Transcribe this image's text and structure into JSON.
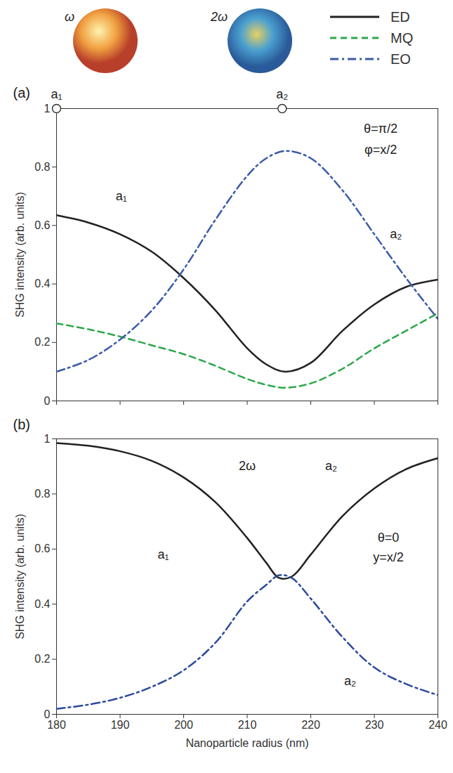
{
  "chart_data": [
    {
      "type": "line",
      "label": "(a)",
      "legend": "top",
      "tick_labels": "y",
      "x_label": "Nanoparticle radius (nm)",
      "y_label": "SHG intensity (arb. units)",
      "xlim": [
        180,
        240
      ],
      "xticks": [
        180,
        190,
        200,
        210,
        220,
        230,
        240
      ],
      "ylim": [
        0,
        1
      ],
      "yticks": [
        0,
        0.2,
        0.4,
        0.6,
        0.8,
        1
      ],
      "annotations": [
        "ω",
        "2ω",
        "θ=π/2",
        "φ=x/2",
        "a₁",
        "a₂"
      ],
      "markers": [
        {
          "label": "a₁",
          "x": 180
        },
        {
          "label": "a₂",
          "x": 215.5
        }
      ],
      "x": [
        180,
        185,
        190,
        195,
        200,
        205,
        210,
        213,
        216,
        220,
        225,
        230,
        235,
        240
      ],
      "series": [
        {
          "name": "ED",
          "color": "#222222",
          "line_style": "solid",
          "values": [
            0.635,
            0.61,
            0.57,
            0.51,
            0.42,
            0.31,
            0.18,
            0.125,
            0.1,
            0.13,
            0.24,
            0.33,
            0.39,
            0.415
          ]
        },
        {
          "name": "MQ",
          "color": "#2ca84a",
          "line_style": "dashed",
          "values": [
            0.265,
            0.245,
            0.22,
            0.19,
            0.16,
            0.12,
            0.075,
            0.055,
            0.045,
            0.06,
            0.11,
            0.18,
            0.24,
            0.3
          ]
        },
        {
          "name": "EO",
          "color": "#3b5ba8",
          "line_style": "dashdot",
          "values": [
            0.1,
            0.14,
            0.21,
            0.31,
            0.45,
            0.62,
            0.77,
            0.83,
            0.855,
            0.83,
            0.72,
            0.57,
            0.42,
            0.28
          ]
        }
      ]
    },
    {
      "type": "line",
      "label": "(b)",
      "x_label": "Nanoparticle radius (nm)",
      "y_label": "SHG intensity (arb. units)",
      "xlim": [
        180,
        240
      ],
      "xticks": [
        180,
        190,
        200,
        210,
        220,
        230,
        240
      ],
      "ylim": [
        0,
        1
      ],
      "yticks": [
        0,
        0.2,
        0.4,
        0.6,
        0.8,
        1
      ],
      "annotations": [
        "2ω",
        "a₂",
        "θ=0",
        "y=x/2",
        "a₁",
        "a₂"
      ],
      "x": [
        180,
        185,
        190,
        195,
        200,
        205,
        210,
        213,
        215,
        217,
        220,
        225,
        230,
        235,
        240
      ],
      "series": [
        {
          "name": "ED",
          "color": "#222222",
          "line_style": "solid",
          "values": [
            0.985,
            0.975,
            0.955,
            0.92,
            0.86,
            0.77,
            0.64,
            0.55,
            0.495,
            0.5,
            0.58,
            0.72,
            0.82,
            0.89,
            0.93
          ]
        },
        {
          "name": "EO",
          "color": "#2b4a9b",
          "line_style": "dashdot",
          "values": [
            0.02,
            0.035,
            0.06,
            0.1,
            0.16,
            0.26,
            0.41,
            0.47,
            0.505,
            0.495,
            0.42,
            0.28,
            0.17,
            0.11,
            0.07
          ]
        }
      ]
    }
  ]
}
